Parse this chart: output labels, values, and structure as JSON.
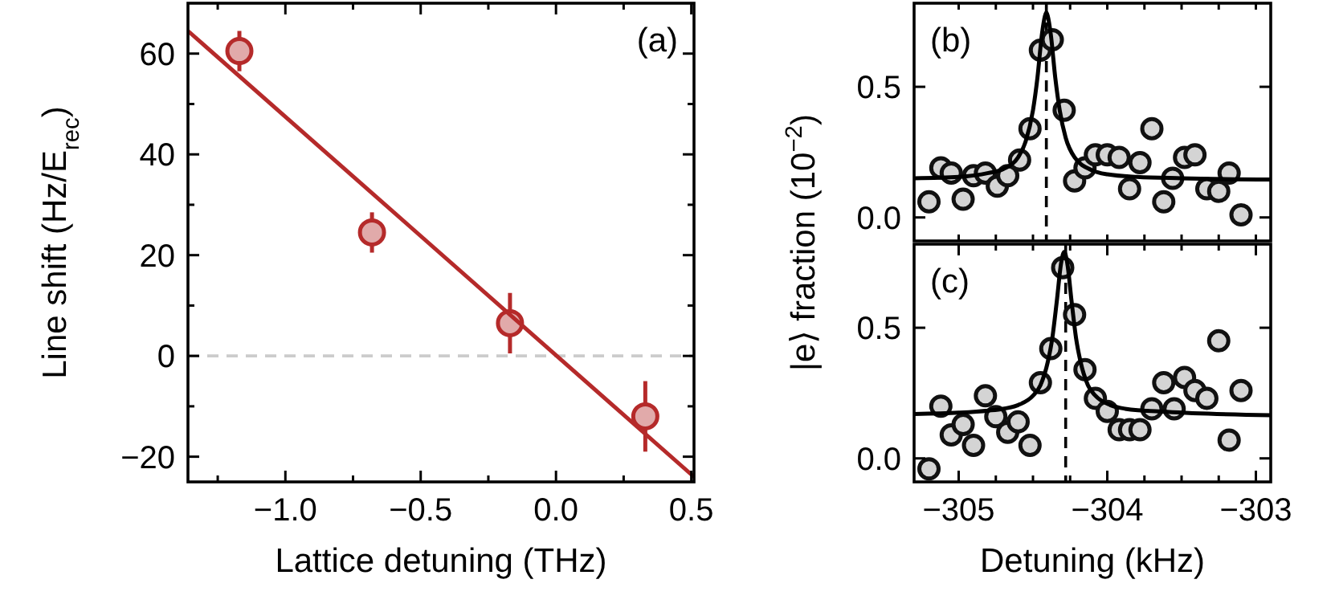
{
  "chart_data": [
    {
      "type": "scatter",
      "title": "(a)",
      "xlabel": "Lattice detuning (THz)",
      "ylabel": "Line shift (Hz/E$_{rec}$)",
      "xlim": [
        -1.36,
        0.51
      ],
      "ylim": [
        -25,
        70
      ],
      "xticks": [
        {
          "value": -1.25,
          "label": null
        },
        {
          "value": -1,
          "label": "−1.0"
        },
        {
          "value": -0.75,
          "label": null
        },
        {
          "value": -0.5,
          "label": "−0.5"
        },
        {
          "value": -0.25,
          "label": null
        },
        {
          "value": 0,
          "label": "0.0"
        },
        {
          "value": 0.25,
          "label": null
        },
        {
          "value": 0.5,
          "label": "0.5"
        }
      ],
      "yticks": [
        {
          "value": -20,
          "label": "−20"
        },
        {
          "value": -10,
          "label": null
        },
        {
          "value": 0,
          "label": "0"
        },
        {
          "value": 10,
          "label": null
        },
        {
          "value": 20,
          "label": "20"
        },
        {
          "value": 30,
          "label": null
        },
        {
          "value": 40,
          "label": "40"
        },
        {
          "value": 50,
          "label": null
        },
        {
          "value": 60,
          "label": "60"
        }
      ],
      "ref_lines": [
        {
          "axis": "y",
          "value": 0,
          "color": "#cccccc",
          "line_style": "dashed"
        }
      ],
      "series": [
        {
          "marker": "circle",
          "color": "#b52a2a",
          "x": [
            -1.17,
            -0.68,
            -0.17,
            0.33
          ],
          "values": [
            60.5,
            24.5,
            6.5,
            -12
          ],
          "errors": [
            4,
            4,
            6,
            7
          ]
        },
        {
          "type": "line",
          "marker": "none",
          "color": "#b52a2a",
          "x": [
            -1.36,
            0.51
          ],
          "values": [
            64.5,
            -24
          ]
        }
      ]
    },
    {
      "type": "scatter",
      "title": "(b)",
      "ylabel": "|e⟩ fraction (10$^{−2}$)",
      "xlim": [
        -305.3,
        -302.9
      ],
      "ylim": [
        -0.09,
        0.82
      ],
      "tick_labels": "y",
      "xticks": [
        {
          "value": -305,
          "label": null
        },
        {
          "value": -304.75,
          "label": null
        },
        {
          "value": -304.5,
          "label": null
        },
        {
          "value": -304.25,
          "label": null
        },
        {
          "value": -304,
          "label": null
        },
        {
          "value": -303.75,
          "label": null
        },
        {
          "value": -303.5,
          "label": null
        },
        {
          "value": -303.25,
          "label": null
        },
        {
          "value": -303,
          "label": null
        }
      ],
      "yticks": [
        {
          "value": 0,
          "label": "0.0"
        },
        {
          "value": 0.5,
          "label": "0.5"
        }
      ],
      "ref_lines": [
        {
          "axis": "x",
          "value": -304.41,
          "color": "#000000",
          "line_style": "dashed"
        }
      ],
      "series": [
        {
          "marker": "circle",
          "color": "#111111",
          "x": [
            -305.2,
            -305.12,
            -305.05,
            -304.97,
            -304.9,
            -304.82,
            -304.74,
            -304.67,
            -304.59,
            -304.52,
            -304.45,
            -304.37,
            -304.29,
            -304.22,
            -304.15,
            -304.08,
            -304.0,
            -303.92,
            -303.85,
            -303.78,
            -303.7,
            -303.62,
            -303.56,
            -303.48,
            -303.41,
            -303.33,
            -303.25,
            -303.18,
            -303.1
          ],
          "values": [
            0.06,
            0.19,
            0.17,
            0.07,
            0.16,
            0.17,
            0.12,
            0.16,
            0.22,
            0.34,
            0.64,
            0.68,
            0.41,
            0.14,
            0.19,
            0.24,
            0.24,
            0.23,
            0.11,
            0.21,
            0.34,
            0.06,
            0.15,
            0.23,
            0.24,
            0.11,
            0.1,
            0.17,
            0.01
          ]
        },
        {
          "type": "line",
          "marker": "none",
          "color": "#000000",
          "x": [
            -305.3,
            -305.0,
            -304.8,
            -304.7,
            -304.6,
            -304.55,
            -304.5,
            -304.47,
            -304.44,
            -304.42,
            -304.41,
            -304.4,
            -304.38,
            -304.35,
            -304.32,
            -304.28,
            -304.22,
            -304.1,
            -304.0,
            -303.8,
            -303.5,
            -302.9
          ],
          "values": [
            0.15,
            0.155,
            0.17,
            0.185,
            0.23,
            0.29,
            0.41,
            0.535,
            0.7,
            0.77,
            0.785,
            0.77,
            0.7,
            0.535,
            0.41,
            0.305,
            0.23,
            0.18,
            0.165,
            0.155,
            0.15,
            0.145
          ]
        }
      ]
    },
    {
      "type": "scatter",
      "title": "(c)",
      "xlabel": "Detuning (kHz)",
      "xlim": [
        -305.3,
        -302.9
      ],
      "ylim": [
        -0.09,
        0.82
      ],
      "xticks": [
        {
          "value": -305,
          "label": "−305"
        },
        {
          "value": -304.75,
          "label": null
        },
        {
          "value": -304.5,
          "label": null
        },
        {
          "value": -304.25,
          "label": null
        },
        {
          "value": -304,
          "label": "−304"
        },
        {
          "value": -303.75,
          "label": null
        },
        {
          "value": -303.5,
          "label": null
        },
        {
          "value": -303.25,
          "label": null
        },
        {
          "value": -303,
          "label": "−303"
        }
      ],
      "yticks": [
        {
          "value": 0,
          "label": "0.0"
        },
        {
          "value": 0.5,
          "label": "0.5"
        }
      ],
      "ref_lines": [
        {
          "axis": "x",
          "value": -304.28,
          "color": "#000000",
          "line_style": "dashed"
        }
      ],
      "series": [
        {
          "marker": "circle",
          "color": "#111111",
          "x": [
            -305.2,
            -305.12,
            -305.05,
            -304.97,
            -304.9,
            -304.82,
            -304.75,
            -304.67,
            -304.6,
            -304.52,
            -304.45,
            -304.38,
            -304.3,
            -304.22,
            -304.15,
            -304.08,
            -304.0,
            -303.92,
            -303.85,
            -303.78,
            -303.7,
            -303.62,
            -303.55,
            -303.48,
            -303.41,
            -303.33,
            -303.25,
            -303.18,
            -303.1
          ],
          "values": [
            -0.04,
            0.2,
            0.09,
            0.13,
            0.05,
            0.24,
            0.16,
            0.1,
            0.14,
            0.05,
            0.29,
            0.42,
            0.73,
            0.55,
            0.34,
            0.23,
            0.18,
            0.11,
            0.11,
            0.11,
            0.19,
            0.29,
            0.19,
            0.31,
            0.26,
            0.23,
            0.45,
            0.07,
            0.26
          ]
        },
        {
          "type": "line",
          "marker": "none",
          "color": "#000000",
          "x": [
            -305.3,
            -305.0,
            -304.8,
            -304.7,
            -304.6,
            -304.5,
            -304.45,
            -304.4,
            -304.37,
            -304.34,
            -304.31,
            -304.29,
            -304.27,
            -304.24,
            -304.21,
            -304.18,
            -304.13,
            -304.08,
            -303.98,
            -303.88,
            -303.6,
            -302.9
          ],
          "values": [
            0.17,
            0.175,
            0.183,
            0.19,
            0.204,
            0.24,
            0.28,
            0.37,
            0.46,
            0.6,
            0.75,
            0.79,
            0.75,
            0.6,
            0.46,
            0.37,
            0.28,
            0.24,
            0.204,
            0.19,
            0.178,
            0.165
          ]
        }
      ]
    }
  ]
}
